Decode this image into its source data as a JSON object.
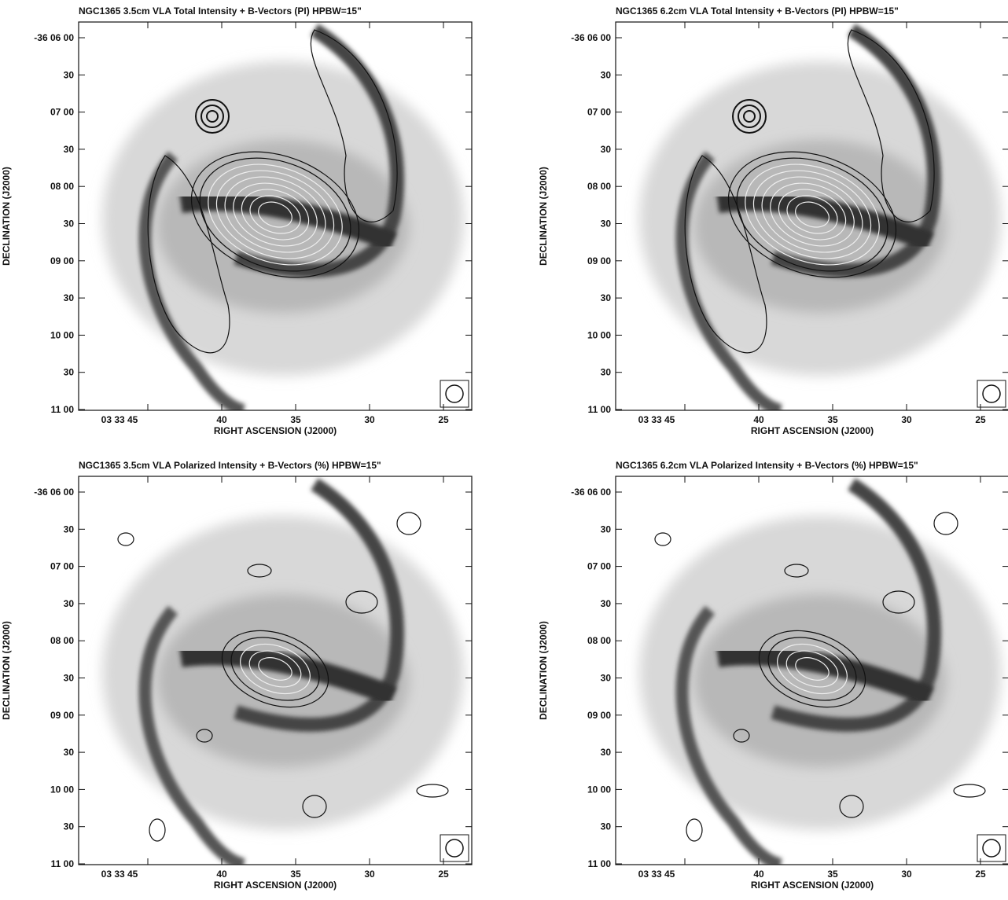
{
  "panels": [
    {
      "title": "NGC1365   3.5cm   VLA   Total Intensity + B-Vectors (PI)   HPBW=15\"",
      "y_tick_labels": [
        "-36 06 00",
        "30",
        "07 00",
        "30",
        "08 00",
        "30",
        "09 00",
        "30",
        "10 00",
        "30",
        "11 00"
      ],
      "x_tick_labels": [
        "03 33 45",
        "40",
        "35",
        "30",
        "25"
      ],
      "x_label": "RIGHT ASCENSION (J2000)",
      "y_label": "DECLINATION (J2000)"
    },
    {
      "title": "NGC1365   6.2cm   VLA   Total Intensity + B-Vectors (PI)   HPBW=15\"",
      "y_tick_labels": [
        "-36 06 00",
        "30",
        "07 00",
        "30",
        "08 00",
        "30",
        "09 00",
        "30",
        "10 00",
        "30",
        "11 00"
      ],
      "x_tick_labels": [
        "03 33 45",
        "40",
        "35",
        "30",
        "25"
      ],
      "x_label": "RIGHT ASCENSION (J2000)",
      "y_label": "DECLINATION (J2000)"
    },
    {
      "title": "NGC1365   3.5cm   VLA   Polarized Intensity + B-Vectors (%)   HPBW=15\"",
      "y_tick_labels": [
        "-36 06 00",
        "30",
        "07 00",
        "30",
        "08 00",
        "30",
        "09 00",
        "30",
        "10 00",
        "30",
        "11 00"
      ],
      "x_tick_labels": [
        "03 33 45",
        "40",
        "35",
        "30",
        "25"
      ],
      "x_label": "RIGHT ASCENSION (J2000)",
      "y_label": "DECLINATION (J2000)"
    },
    {
      "title": "NGC1365   6.2cm   VLA   Polarized Intensity + B-Vectors (%)   HPBW=15\"",
      "y_tick_labels": [
        "-36 06 00",
        "30",
        "07 00",
        "30",
        "08 00",
        "30",
        "09 00",
        "30",
        "10 00",
        "30",
        "11 00"
      ],
      "x_tick_labels": [
        "03 33 45",
        "40",
        "35",
        "30",
        "25"
      ],
      "x_label": "RIGHT ASCENSION (J2000)",
      "y_label": "DECLINATION (J2000)"
    }
  ]
}
